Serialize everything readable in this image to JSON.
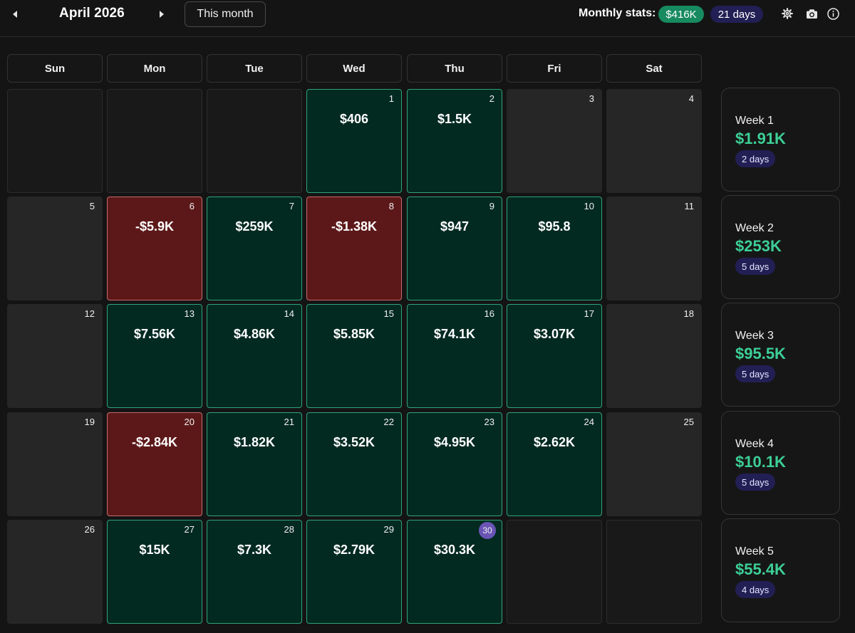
{
  "header": {
    "month_title": "April 2026",
    "this_month_label": "This month",
    "stats_label": "Monthly stats:",
    "stats_total": "$416K",
    "stats_days": "21 days",
    "icons": [
      "chevron-left-icon",
      "chevron-right-icon",
      "gear-icon",
      "camera-icon",
      "info-icon"
    ]
  },
  "weekdays": [
    "Sun",
    "Mon",
    "Tue",
    "Wed",
    "Thu",
    "Fri",
    "Sat"
  ],
  "colors": {
    "positive_bg": "#032a21",
    "positive_border": "#2fa37a",
    "negative_bg": "#5c1819",
    "negative_border": "#c86a6b",
    "neutral_bg": "#262626",
    "accent_green": "#3ccf96",
    "badge_purple": "#221f55",
    "today_marker": "#6a55b5"
  },
  "weeks": [
    {
      "label": "Week 1",
      "total": "$1.91K",
      "days": "2 days",
      "cells": [
        {
          "state": "empty",
          "day": "",
          "value": ""
        },
        {
          "state": "empty",
          "day": "",
          "value": ""
        },
        {
          "state": "empty",
          "day": "",
          "value": ""
        },
        {
          "state": "positive",
          "day": "1",
          "value": "$406"
        },
        {
          "state": "positive",
          "day": "2",
          "value": "$1.5K"
        },
        {
          "state": "neutral",
          "day": "3",
          "value": ""
        },
        {
          "state": "neutral",
          "day": "4",
          "value": ""
        }
      ]
    },
    {
      "label": "Week 2",
      "total": "$253K",
      "days": "5 days",
      "cells": [
        {
          "state": "neutral",
          "day": "5",
          "value": ""
        },
        {
          "state": "negative",
          "day": "6",
          "value": "-$5.9K"
        },
        {
          "state": "positive",
          "day": "7",
          "value": "$259K"
        },
        {
          "state": "negative",
          "day": "8",
          "value": "-$1.38K"
        },
        {
          "state": "positive",
          "day": "9",
          "value": "$947"
        },
        {
          "state": "positive",
          "day": "10",
          "value": "$95.8"
        },
        {
          "state": "neutral",
          "day": "11",
          "value": ""
        }
      ]
    },
    {
      "label": "Week 3",
      "total": "$95.5K",
      "days": "5 days",
      "cells": [
        {
          "state": "neutral",
          "day": "12",
          "value": ""
        },
        {
          "state": "positive",
          "day": "13",
          "value": "$7.56K"
        },
        {
          "state": "positive",
          "day": "14",
          "value": "$4.86K"
        },
        {
          "state": "positive",
          "day": "15",
          "value": "$5.85K"
        },
        {
          "state": "positive",
          "day": "16",
          "value": "$74.1K"
        },
        {
          "state": "positive",
          "day": "17",
          "value": "$3.07K"
        },
        {
          "state": "neutral",
          "day": "18",
          "value": ""
        }
      ]
    },
    {
      "label": "Week 4",
      "total": "$10.1K",
      "days": "5 days",
      "cells": [
        {
          "state": "neutral",
          "day": "19",
          "value": ""
        },
        {
          "state": "negative",
          "day": "20",
          "value": "-$2.84K"
        },
        {
          "state": "positive",
          "day": "21",
          "value": "$1.82K"
        },
        {
          "state": "positive",
          "day": "22",
          "value": "$3.52K"
        },
        {
          "state": "positive",
          "day": "23",
          "value": "$4.95K"
        },
        {
          "state": "positive",
          "day": "24",
          "value": "$2.62K"
        },
        {
          "state": "neutral",
          "day": "25",
          "value": ""
        }
      ]
    },
    {
      "label": "Week 5",
      "total": "$55.4K",
      "days": "4 days",
      "cells": [
        {
          "state": "neutral",
          "day": "26",
          "value": ""
        },
        {
          "state": "positive",
          "day": "27",
          "value": "$15K"
        },
        {
          "state": "positive",
          "day": "28",
          "value": "$7.3K"
        },
        {
          "state": "positive",
          "day": "29",
          "value": "$2.79K"
        },
        {
          "state": "positive",
          "day": "30",
          "value": "$30.3K",
          "today": true
        },
        {
          "state": "empty",
          "day": "",
          "value": ""
        },
        {
          "state": "empty",
          "day": "",
          "value": ""
        }
      ]
    }
  ]
}
